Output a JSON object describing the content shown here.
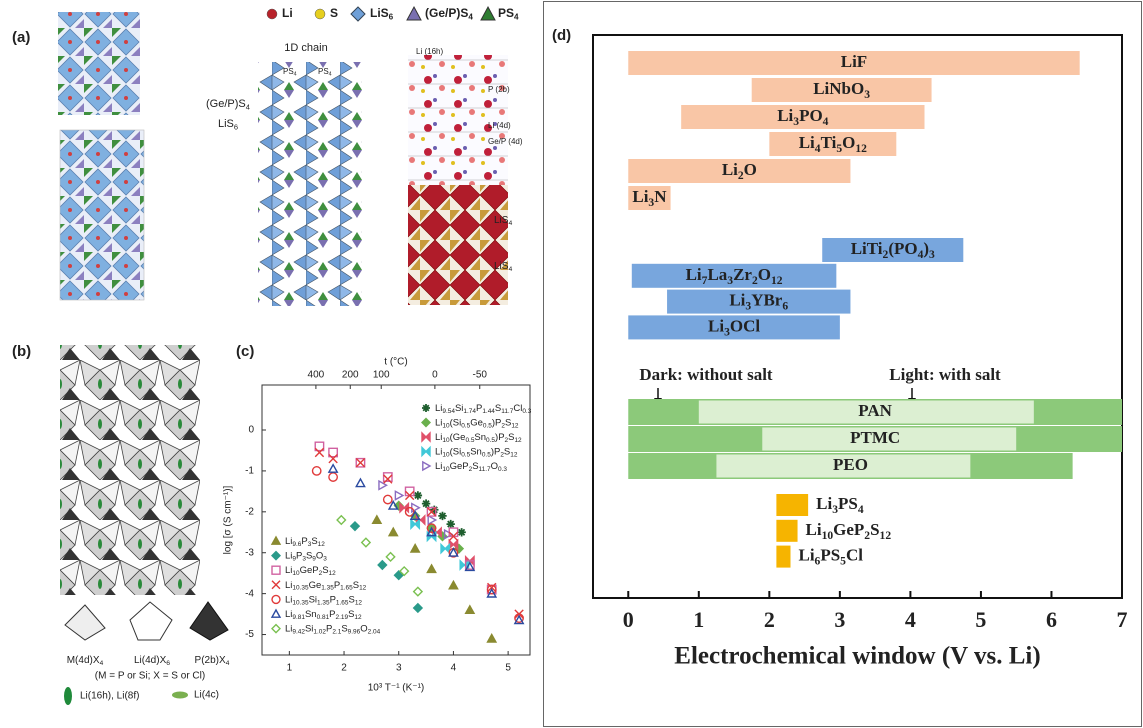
{
  "figure": {
    "panel_a": {
      "label": "(a)",
      "legend": [
        {
          "name": "Li",
          "color": "#b8222a"
        },
        {
          "name": "S",
          "color": "#e6cf1e"
        },
        {
          "name": "LiS6",
          "color": "#6fa0d8"
        },
        {
          "name": "(Ge/P)S4",
          "color": "#7a70b0"
        },
        {
          "name": "PS4",
          "color": "#2f7d32"
        }
      ],
      "texts": {
        "chain": "1D chain",
        "gep": "(Ge/P)S4",
        "lis6": "LiS6",
        "ps4_a": "PS4",
        "ps4_b": "PS4",
        "li16h": "Li (16h)",
        "p2b": "P (2b)",
        "li4d": "Li (4d)",
        "gep4d": "Ge/P (4d)",
        "lis4_a": "LiS4",
        "lis4_b": "LiS4"
      }
    },
    "panel_b": {
      "label": "(b)",
      "polyhedra": [
        "M(4d)X4",
        "Li(4d)X6",
        "P(2b)X4"
      ],
      "note": "(M = P or Si; X = S or Cl)",
      "sites": [
        "Li(16h), Li(8f)",
        "Li(4c)"
      ]
    }
  },
  "chart_data": [
    {
      "type": "scatter",
      "label": "(c)",
      "xlabel": "10³ T⁻¹ (K⁻¹)",
      "ylabel": "log [σ (S cm⁻¹)]",
      "x2label": "t (°C)",
      "xlim": [
        0.5,
        5.4
      ],
      "ylim": [
        -5.5,
        1.1
      ],
      "xticks": [
        1,
        2,
        3,
        4,
        5
      ],
      "yticks": [
        -5,
        -4,
        -3,
        -2,
        -1,
        0
      ],
      "x2ticks": [
        400,
        200,
        100,
        0,
        -50
      ],
      "series": [
        {
          "name": "Li9.54Si1.74P1.44S11.7Cl0.3",
          "color": "#1e5e2e",
          "marker": "asterisk",
          "filled": true,
          "x": [
            3.35,
            3.5,
            3.65,
            3.8,
            3.95,
            4.15
          ],
          "values": [
            -1.6,
            -1.8,
            -1.95,
            -2.1,
            -2.3,
            -2.5
          ]
        },
        {
          "name": "Li10(Si0.5Ge0.5)P2S12",
          "color": "#6ab04c",
          "marker": "diamond",
          "filled": true,
          "x": [
            3.0,
            3.3,
            3.6,
            3.8,
            4.1
          ],
          "values": [
            -1.85,
            -2.1,
            -2.4,
            -2.6,
            -2.9
          ]
        },
        {
          "name": "Li10(Ge0.5Sn0.5)P2S12",
          "color": "#e0506a",
          "marker": "bowtie",
          "filled": true,
          "x": [
            3.1,
            3.4,
            3.7,
            4.0,
            4.3
          ],
          "values": [
            -1.9,
            -2.2,
            -2.5,
            -2.8,
            -3.2
          ]
        },
        {
          "name": "Li10(Si0.5Sn0.5)P2S12",
          "color": "#40c8d8",
          "marker": "bowtie",
          "filled": true,
          "x": [
            3.3,
            3.6,
            3.85,
            4.2
          ],
          "values": [
            -2.3,
            -2.6,
            -2.9,
            -3.3
          ]
        },
        {
          "name": "Li10GeP2S11.7O0.3",
          "color": "#8a6cc0",
          "marker": "triangle_right",
          "filled": false,
          "x": [
            2.7,
            3.0,
            3.3,
            3.6,
            3.9
          ],
          "values": [
            -1.35,
            -1.6,
            -1.9,
            -2.2,
            -2.55
          ]
        },
        {
          "name": "Li9.6P3S12",
          "color": "#8a8a30",
          "marker": "triangle_up",
          "filled": true,
          "x": [
            2.6,
            2.9,
            3.3,
            3.6,
            4.0,
            4.3,
            4.7
          ],
          "values": [
            -2.2,
            -2.5,
            -2.9,
            -3.4,
            -3.8,
            -4.4,
            -5.1
          ]
        },
        {
          "name": "Li9P3S9O3",
          "color": "#2a9a8a",
          "marker": "diamond",
          "filled": true,
          "x": [
            2.2,
            2.7,
            3.0,
            3.35
          ],
          "values": [
            -2.35,
            -3.3,
            -3.55,
            -4.35
          ]
        },
        {
          "name": "Li10GeP2S12",
          "color": "#d060a0",
          "marker": "square",
          "filled": false,
          "x": [
            1.55,
            1.8,
            2.3,
            2.8,
            3.2,
            3.6,
            4.0,
            4.3,
            4.7
          ],
          "values": [
            -0.4,
            -0.55,
            -0.8,
            -1.15,
            -1.5,
            -2.0,
            -2.5,
            -3.3,
            -3.9
          ]
        },
        {
          "name": "Li10.35Ge1.35P1.65S12",
          "color": "#e03a3a",
          "marker": "x",
          "filled": false,
          "x": [
            1.55,
            1.8,
            2.3,
            2.8,
            3.2,
            3.6,
            4.0,
            4.7,
            5.2
          ],
          "values": [
            -0.55,
            -0.7,
            -0.8,
            -1.2,
            -1.6,
            -2.0,
            -2.6,
            -3.85,
            -4.5
          ]
        },
        {
          "name": "Li10.35Si1.35P1.65S12",
          "color": "#e03a3a",
          "marker": "circle",
          "filled": false,
          "x": [
            1.5,
            1.8,
            2.8,
            3.2,
            3.6,
            4.0,
            4.7,
            5.2
          ],
          "values": [
            -1.0,
            -1.15,
            -1.7,
            -2.0,
            -2.4,
            -3.0,
            -3.9,
            -4.6
          ]
        },
        {
          "name": "Li9.81Sn0.81P2.19S12",
          "color": "#2a4aa0",
          "marker": "triangle_up",
          "filled": false,
          "x": [
            1.8,
            2.3,
            2.9,
            3.3,
            3.6,
            4.0,
            4.3,
            4.7,
            5.2
          ],
          "values": [
            -0.95,
            -1.3,
            -1.85,
            -2.1,
            -2.5,
            -3.0,
            -3.35,
            -4.0,
            -4.65
          ]
        },
        {
          "name": "Li9.42Si1.02P2.1S9.96O2.04",
          "color": "#7ac050",
          "marker": "diamond",
          "filled": false,
          "x": [
            1.95,
            2.4,
            2.85,
            3.1,
            3.35
          ],
          "values": [
            -2.2,
            -2.75,
            -3.1,
            -3.45,
            -3.95
          ]
        }
      ]
    },
    {
      "type": "floating_bar",
      "label": "(d)",
      "xlabel": "Electrochemical window (V vs. Li)",
      "xlim": [
        -0.5,
        7
      ],
      "xticks": [
        0,
        1,
        2,
        3,
        4,
        5,
        6,
        7
      ],
      "groups": [
        {
          "series": [
            {
              "color": "#f9c6a6"
            }
          ],
          "bars": [
            {
              "label": "LiF",
              "ranges": [
                [
                  0,
                  6.4
                ]
              ]
            },
            {
              "label": "LiNbO3",
              "ranges": [
                [
                  1.75,
                  4.3
                ]
              ]
            },
            {
              "label": "Li3PO4",
              "ranges": [
                [
                  0.75,
                  4.2
                ]
              ]
            },
            {
              "label": "Li4Ti5O12",
              "ranges": [
                [
                  2,
                  3.8
                ]
              ]
            },
            {
              "label": "Li2O",
              "ranges": [
                [
                  0,
                  3.15
                ]
              ]
            },
            {
              "label": "Li3N",
              "ranges": [
                [
                  0,
                  0.6
                ]
              ]
            }
          ]
        },
        {
          "series": [
            {
              "color": "#78a6dd"
            }
          ],
          "bars": [
            {
              "label": "LiTi2(PO4)3",
              "ranges": [
                [
                  2.75,
                  4.75
                ]
              ]
            },
            {
              "label": "Li7La3Zr2O12",
              "ranges": [
                [
                  0.05,
                  2.95
                ]
              ]
            },
            {
              "label": "Li3YBr6",
              "ranges": [
                [
                  0.55,
                  3.15
                ]
              ]
            },
            {
              "label": "Li3OCl",
              "ranges": [
                [
                  0,
                  3.0
                ]
              ]
            }
          ]
        },
        {
          "series": [
            {
              "name": "Dark: without salt",
              "color": "#8cc97a"
            },
            {
              "name": "Light: with salt",
              "color": "#dcefd2"
            }
          ],
          "bars": [
            {
              "label": "PAN",
              "ranges": [
                [
                  0,
                  7
                ],
                [
                  1,
                  5.75
                ]
              ]
            },
            {
              "label": "PTMC",
              "ranges": [
                [
                  0,
                  7
                ],
                [
                  1.9,
                  5.5
                ]
              ]
            },
            {
              "label": "PEO",
              "ranges": [
                [
                  0,
                  6.3
                ],
                [
                  1.25,
                  4.85
                ]
              ]
            }
          ]
        },
        {
          "series": [
            {
              "color": "#f6b400"
            }
          ],
          "bars": [
            {
              "label": "Li3PS4",
              "ranges": [
                [
                  2.1,
                  2.55
                ]
              ]
            },
            {
              "label": "Li10GeP2S12",
              "ranges": [
                [
                  2.1,
                  2.4
                ]
              ]
            },
            {
              "label": "Li6PS5Cl",
              "ranges": [
                [
                  2.1,
                  2.3
                ]
              ]
            }
          ]
        }
      ]
    }
  ]
}
